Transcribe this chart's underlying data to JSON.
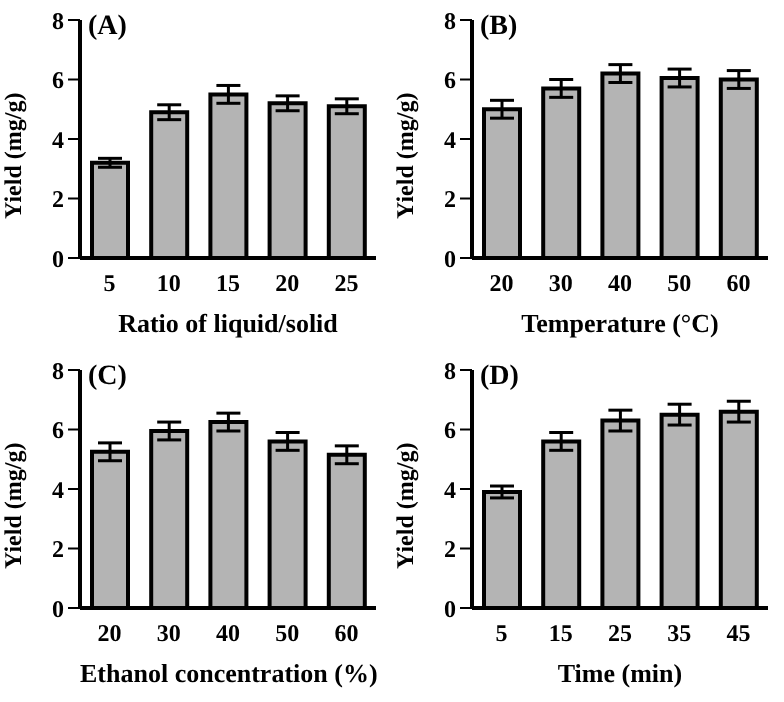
{
  "chart_data": [
    {
      "type": "bar",
      "annotations": [
        "(A)"
      ],
      "xlabel": "Ratio of liquid/solid",
      "ylabel": "Yield (mg/g)",
      "categories": [
        "5",
        "10",
        "15",
        "20",
        "25"
      ],
      "values": [
        3.2,
        4.9,
        5.5,
        5.2,
        5.1
      ],
      "errors": [
        0.15,
        0.25,
        0.3,
        0.25,
        0.25
      ],
      "color": "#b4b4b4",
      "ylim": [
        0,
        8
      ],
      "yticks": [
        0,
        2,
        4,
        6,
        8
      ],
      "grid": false
    },
    {
      "type": "bar",
      "annotations": [
        "(B)"
      ],
      "xlabel": "Temperature (°C)",
      "ylabel": "Yield (mg/g)",
      "categories": [
        "20",
        "30",
        "40",
        "50",
        "60"
      ],
      "values": [
        5.0,
        5.7,
        6.2,
        6.05,
        6.0
      ],
      "errors": [
        0.3,
        0.3,
        0.3,
        0.3,
        0.3
      ],
      "color": "#b4b4b4",
      "ylim": [
        0,
        8
      ],
      "yticks": [
        0,
        2,
        4,
        6,
        8
      ],
      "grid": false
    },
    {
      "type": "bar",
      "annotations": [
        "(C)"
      ],
      "xlabel": "Ethanol concentration (%)",
      "ylabel": "Yield (mg/g)",
      "categories": [
        "20",
        "30",
        "40",
        "50",
        "60"
      ],
      "values": [
        5.25,
        5.95,
        6.25,
        5.6,
        5.15
      ],
      "errors": [
        0.3,
        0.3,
        0.3,
        0.3,
        0.3
      ],
      "color": "#b4b4b4",
      "ylim": [
        0,
        8
      ],
      "yticks": [
        0,
        2,
        4,
        6,
        8
      ],
      "grid": false
    },
    {
      "type": "bar",
      "annotations": [
        "(D)"
      ],
      "xlabel": "Time (min)",
      "ylabel": "Yield (mg/g)",
      "categories": [
        "5",
        "15",
        "25",
        "35",
        "45"
      ],
      "values": [
        3.9,
        5.6,
        6.3,
        6.5,
        6.6
      ],
      "errors": [
        0.2,
        0.3,
        0.35,
        0.35,
        0.35
      ],
      "color": "#b4b4b4",
      "ylim": [
        0,
        8
      ],
      "yticks": [
        0,
        2,
        4,
        6,
        8
      ],
      "grid": false
    }
  ]
}
